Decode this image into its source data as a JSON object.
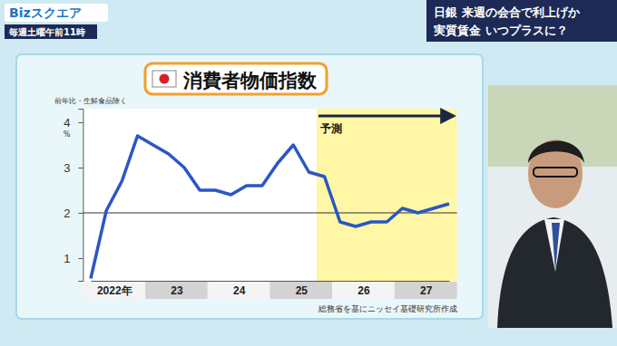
{
  "header": {
    "logo": "Bizスクエア",
    "schedule": "毎週土曜午前11時",
    "headline": [
      "日銀 来週の会合で利上げか",
      "実質賃金 いつプラスに？"
    ]
  },
  "chart_data": {
    "type": "line",
    "title": "消費者物価指数",
    "y_label": "前年比・生鮮食品除く",
    "y_unit": "%",
    "categories": [
      null,
      "2022年",
      null,
      null,
      null,
      "23",
      null,
      null,
      null,
      "24",
      null,
      null,
      null,
      "25",
      null,
      null,
      null,
      "26",
      null,
      null,
      null,
      "27",
      null,
      null
    ],
    "values": [
      0.55,
      2.05,
      2.7,
      3.7,
      3.5,
      3.3,
      3.0,
      2.5,
      2.5,
      2.4,
      2.6,
      2.6,
      3.1,
      3.5,
      2.9,
      2.8,
      1.8,
      1.7,
      1.8,
      1.8,
      2.1,
      2.0,
      2.1,
      2.2
    ],
    "color": "#2a56c6",
    "ylim": [
      0.5,
      4.3
    ],
    "yticks": [
      1,
      2,
      3,
      4
    ],
    "grid": false,
    "reference_lines": [
      2
    ],
    "annotations": [
      {
        "text": "予測",
        "start": 15
      }
    ],
    "source": "総務省を基にニッセイ基礎研究所作成"
  }
}
